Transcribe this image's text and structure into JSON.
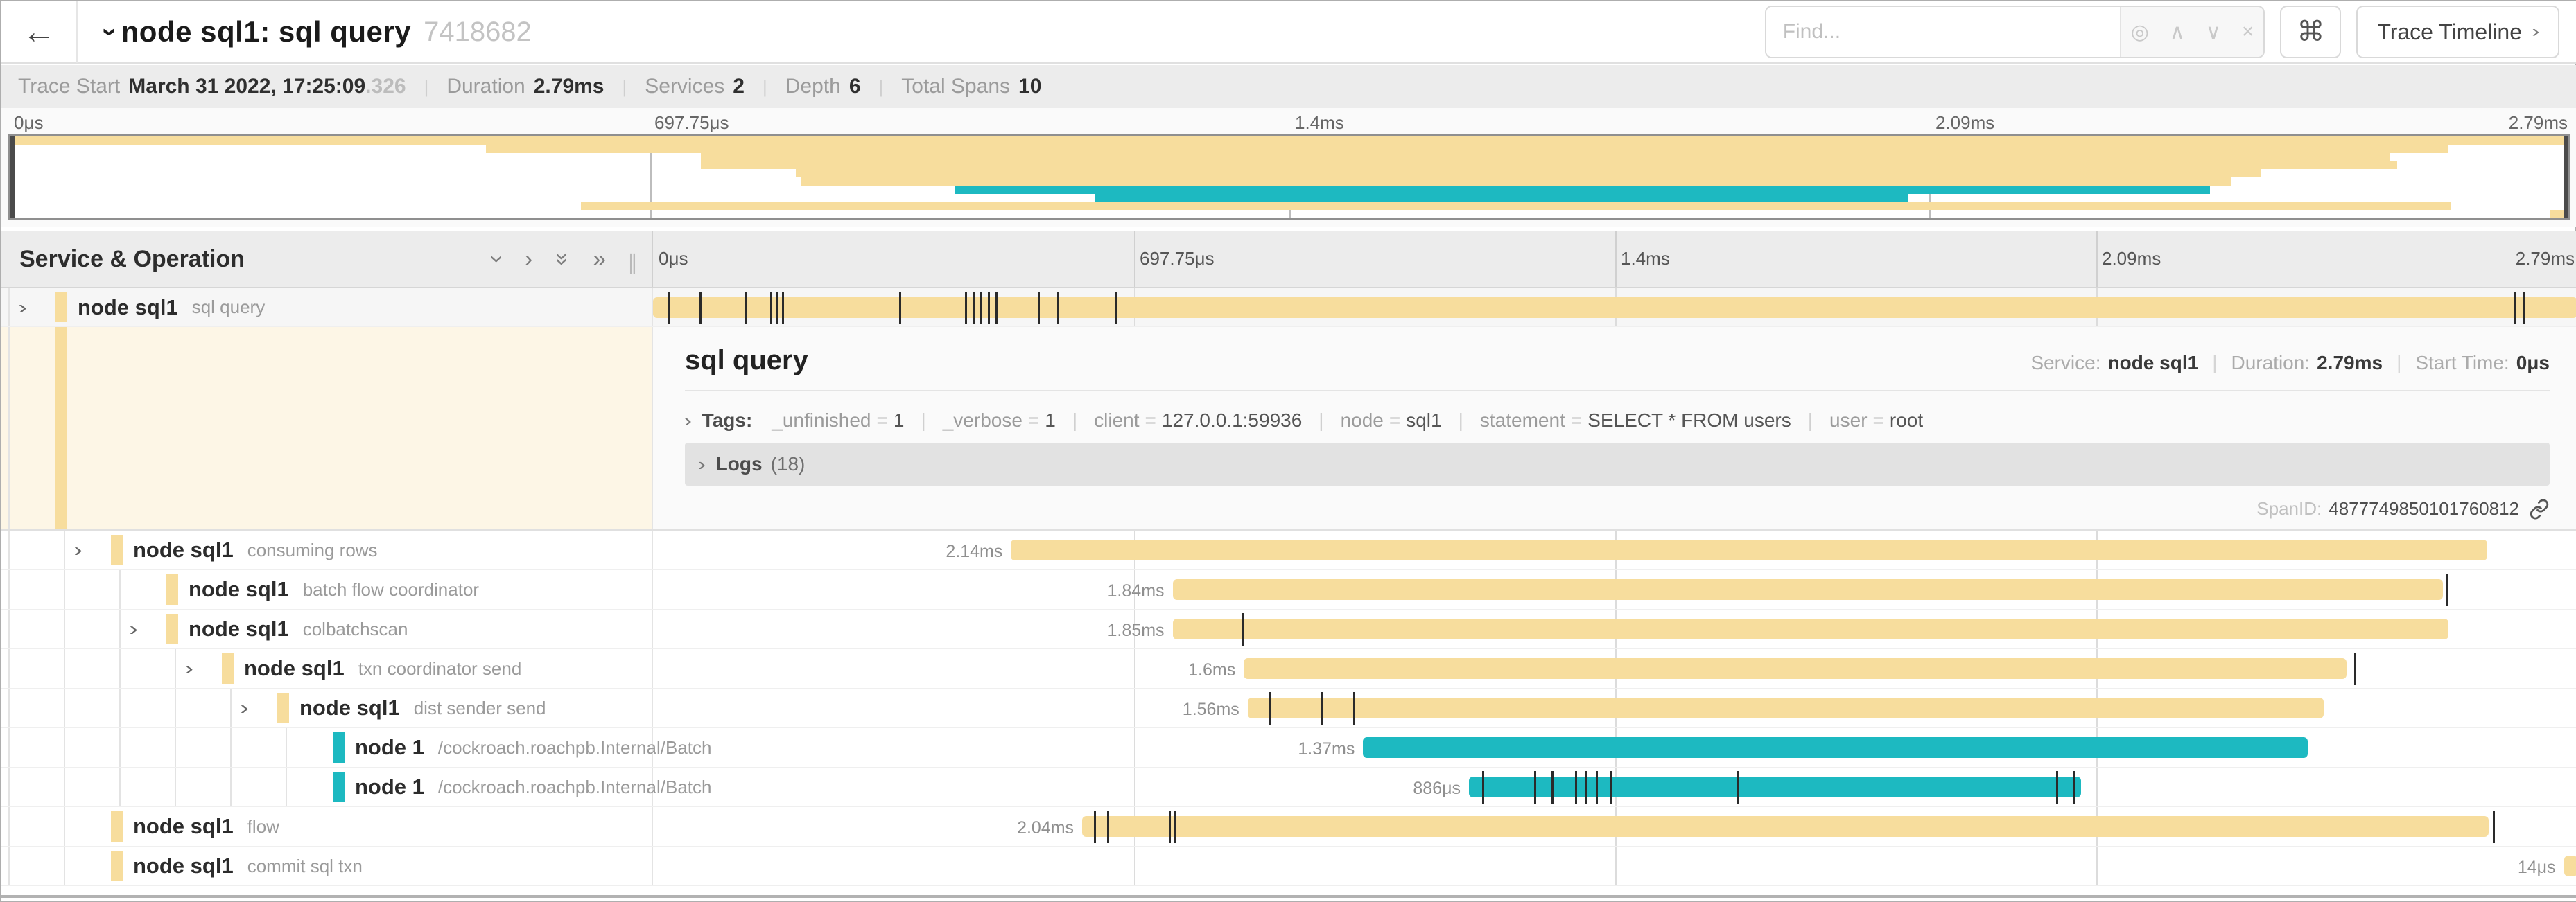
{
  "header": {
    "back_icon": "←",
    "title_chevron": "›",
    "title": "node sql1: sql query",
    "trace_id": "7418682",
    "find_placeholder": "Find...",
    "find_icons": [
      {
        "name": "locate-icon",
        "glyph": "◎"
      },
      {
        "name": "prev-result-icon",
        "glyph": "∧"
      },
      {
        "name": "next-result-icon",
        "glyph": "∨"
      },
      {
        "name": "clear-icon",
        "glyph": "×"
      }
    ],
    "shortcuts_icon": "⌘",
    "view_button_label": "Trace Timeline",
    "view_button_chevron": "›"
  },
  "trace_info": [
    {
      "label": "Trace Start",
      "value": "March 31 2022, 17:25:09",
      "suffix": ".326"
    },
    {
      "label": "Duration",
      "value": "2.79ms"
    },
    {
      "label": "Services",
      "value": "2"
    },
    {
      "label": "Depth",
      "value": "6"
    },
    {
      "label": "Total Spans",
      "value": "10"
    }
  ],
  "timeline": {
    "ticks": [
      "0μs",
      "697.75μs",
      "1.4ms",
      "2.09ms",
      "2.79ms"
    ],
    "tick_pcts": [
      0,
      25,
      50,
      75,
      100
    ],
    "grid_pcts": [
      25,
      50,
      75
    ]
  },
  "grid_header": {
    "title": "Service & Operation",
    "icons": [
      {
        "name": "collapse-all-icon",
        "glyph": "›",
        "rot": true
      },
      {
        "name": "expand-one-icon",
        "glyph": "›",
        "rot": false
      },
      {
        "name": "collapse-deep-icon",
        "glyph": "»",
        "rot": true
      },
      {
        "name": "expand-all-icon",
        "glyph": "»",
        "rot": false
      }
    ],
    "splitter": "∥"
  },
  "colors": {
    "tan": "#f7dd9d",
    "teal": "#1db9c1",
    "selected_left_bg": "#fdf6e6",
    "tick": "#2a2a2a"
  },
  "spans": [
    {
      "service": "node sql1",
      "operation": "sql query",
      "depth": 0,
      "color": "tan",
      "chevron": true,
      "bar": {
        "start": 0,
        "width": 100,
        "label": "",
        "ticks": [
          0.8,
          2.4,
          4.8,
          6.1,
          6.4,
          6.7,
          12.8,
          16.2,
          16.6,
          17.0,
          17.4,
          17.8,
          20.0,
          21.0,
          24.0,
          96.7,
          97.2
        ]
      }
    },
    {
      "service": "node sql1",
      "operation": "consuming rows",
      "depth": 1,
      "color": "tan",
      "chevron": true,
      "bar": {
        "start": 18.6,
        "width": 76.7,
        "label": "2.14ms",
        "ticks": []
      }
    },
    {
      "service": "node sql1",
      "operation": "batch flow coordinator",
      "depth": 2,
      "color": "tan",
      "chevron": false,
      "bar": {
        "start": 27.0,
        "width": 66.0,
        "label": "1.84ms",
        "ticks": [
          93.2
        ]
      }
    },
    {
      "service": "node sql1",
      "operation": "colbatchscan",
      "depth": 2,
      "color": "tan",
      "chevron": true,
      "bar": {
        "start": 27.0,
        "width": 66.3,
        "label": "1.85ms",
        "ticks": [
          30.6
        ]
      }
    },
    {
      "service": "node sql1",
      "operation": "txn coordinator send",
      "depth": 3,
      "color": "tan",
      "chevron": true,
      "bar": {
        "start": 30.7,
        "width": 57.3,
        "label": "1.6ms",
        "ticks": [
          88.4
        ]
      }
    },
    {
      "service": "node sql1",
      "operation": "dist sender send",
      "depth": 4,
      "color": "tan",
      "chevron": true,
      "bar": {
        "start": 30.9,
        "width": 55.9,
        "label": "1.56ms",
        "ticks": [
          32.0,
          34.7,
          36.4
        ]
      }
    },
    {
      "service": "node 1",
      "operation": "/cockroach.roachpb.Internal/Batch",
      "depth": 5,
      "color": "teal",
      "chevron": false,
      "bar": {
        "start": 36.9,
        "width": 49.1,
        "label": "1.37ms",
        "ticks": []
      }
    },
    {
      "service": "node 1",
      "operation": "/cockroach.roachpb.Internal/Batch",
      "depth": 5,
      "color": "teal",
      "chevron": false,
      "bar": {
        "start": 42.4,
        "width": 31.8,
        "label": "886μs",
        "ticks": [
          43.1,
          45.8,
          46.7,
          47.9,
          48.4,
          49.0,
          49.7,
          56.3,
          72.9,
          73.8
        ]
      }
    },
    {
      "service": "node sql1",
      "operation": "flow",
      "depth": 1,
      "color": "tan",
      "chevron": false,
      "bar": {
        "start": 22.3,
        "width": 73.1,
        "label": "2.04ms",
        "ticks": [
          22.9,
          23.6,
          26.8,
          27.1,
          95.6
        ]
      }
    },
    {
      "service": "node sql1",
      "operation": "commit sql txn",
      "depth": 1,
      "color": "tan",
      "chevron": false,
      "bar": {
        "start": 99.3,
        "width": 0.7,
        "label": "14μs",
        "ticks": []
      }
    }
  ],
  "detail": {
    "title": "sql query",
    "service_label": "Service:",
    "service": "node sql1",
    "duration_label": "Duration:",
    "duration": "2.79ms",
    "start_label": "Start Time:",
    "start": "0μs",
    "tags_label": "Tags:",
    "tags": [
      {
        "key": "_unfinished",
        "value": "1"
      },
      {
        "key": "_verbose",
        "value": "1"
      },
      {
        "key": "client",
        "value": "127.0.0.1:59936"
      },
      {
        "key": "node",
        "value": "sql1"
      },
      {
        "key": "statement",
        "value": "SELECT * FROM users"
      },
      {
        "key": "user",
        "value": "root"
      }
    ],
    "logs_label": "Logs",
    "logs_count": "(18)",
    "span_id_label": "SpanID:",
    "span_id": "4877749850101760812"
  }
}
